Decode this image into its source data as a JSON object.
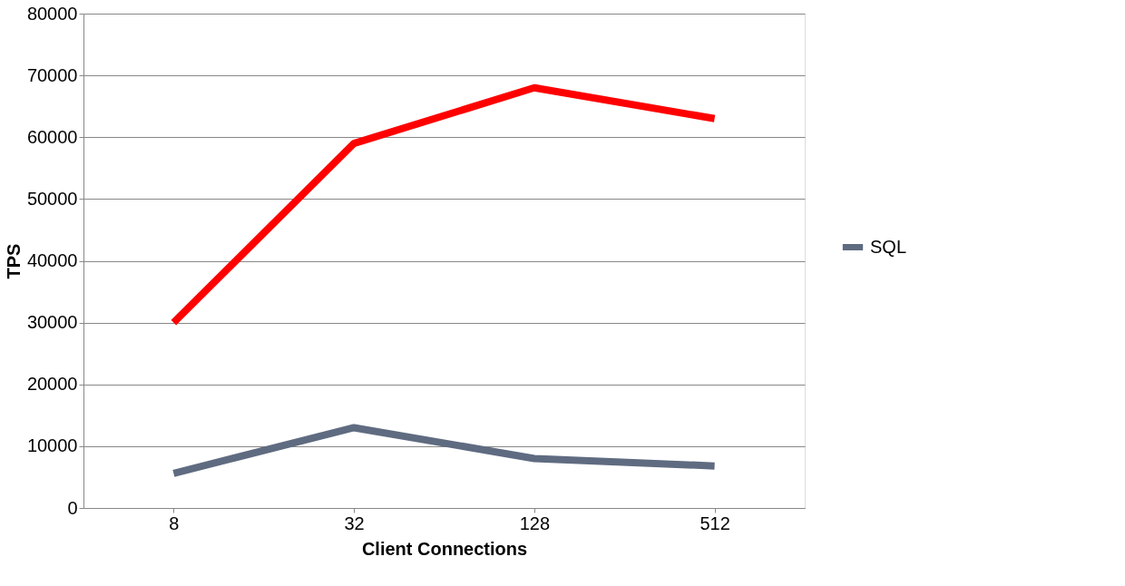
{
  "chart_data": {
    "type": "line",
    "xlabel": "Client Connections",
    "ylabel": "TPS",
    "categories": [
      "8",
      "32",
      "128",
      "512"
    ],
    "series": [
      {
        "color": "#ff0000",
        "values": [
          30000,
          59000,
          68000,
          63000
        ]
      },
      {
        "name": "SQL",
        "color": "#5f6b80",
        "values": [
          5600,
          13000,
          8000,
          6800
        ]
      }
    ],
    "ylim": [
      0,
      80000
    ],
    "yticks": [
      0,
      10000,
      20000,
      30000,
      40000,
      50000,
      60000,
      70000,
      80000
    ],
    "grid": "y",
    "legend": "right",
    "marker": "none",
    "line_style": "solid"
  }
}
